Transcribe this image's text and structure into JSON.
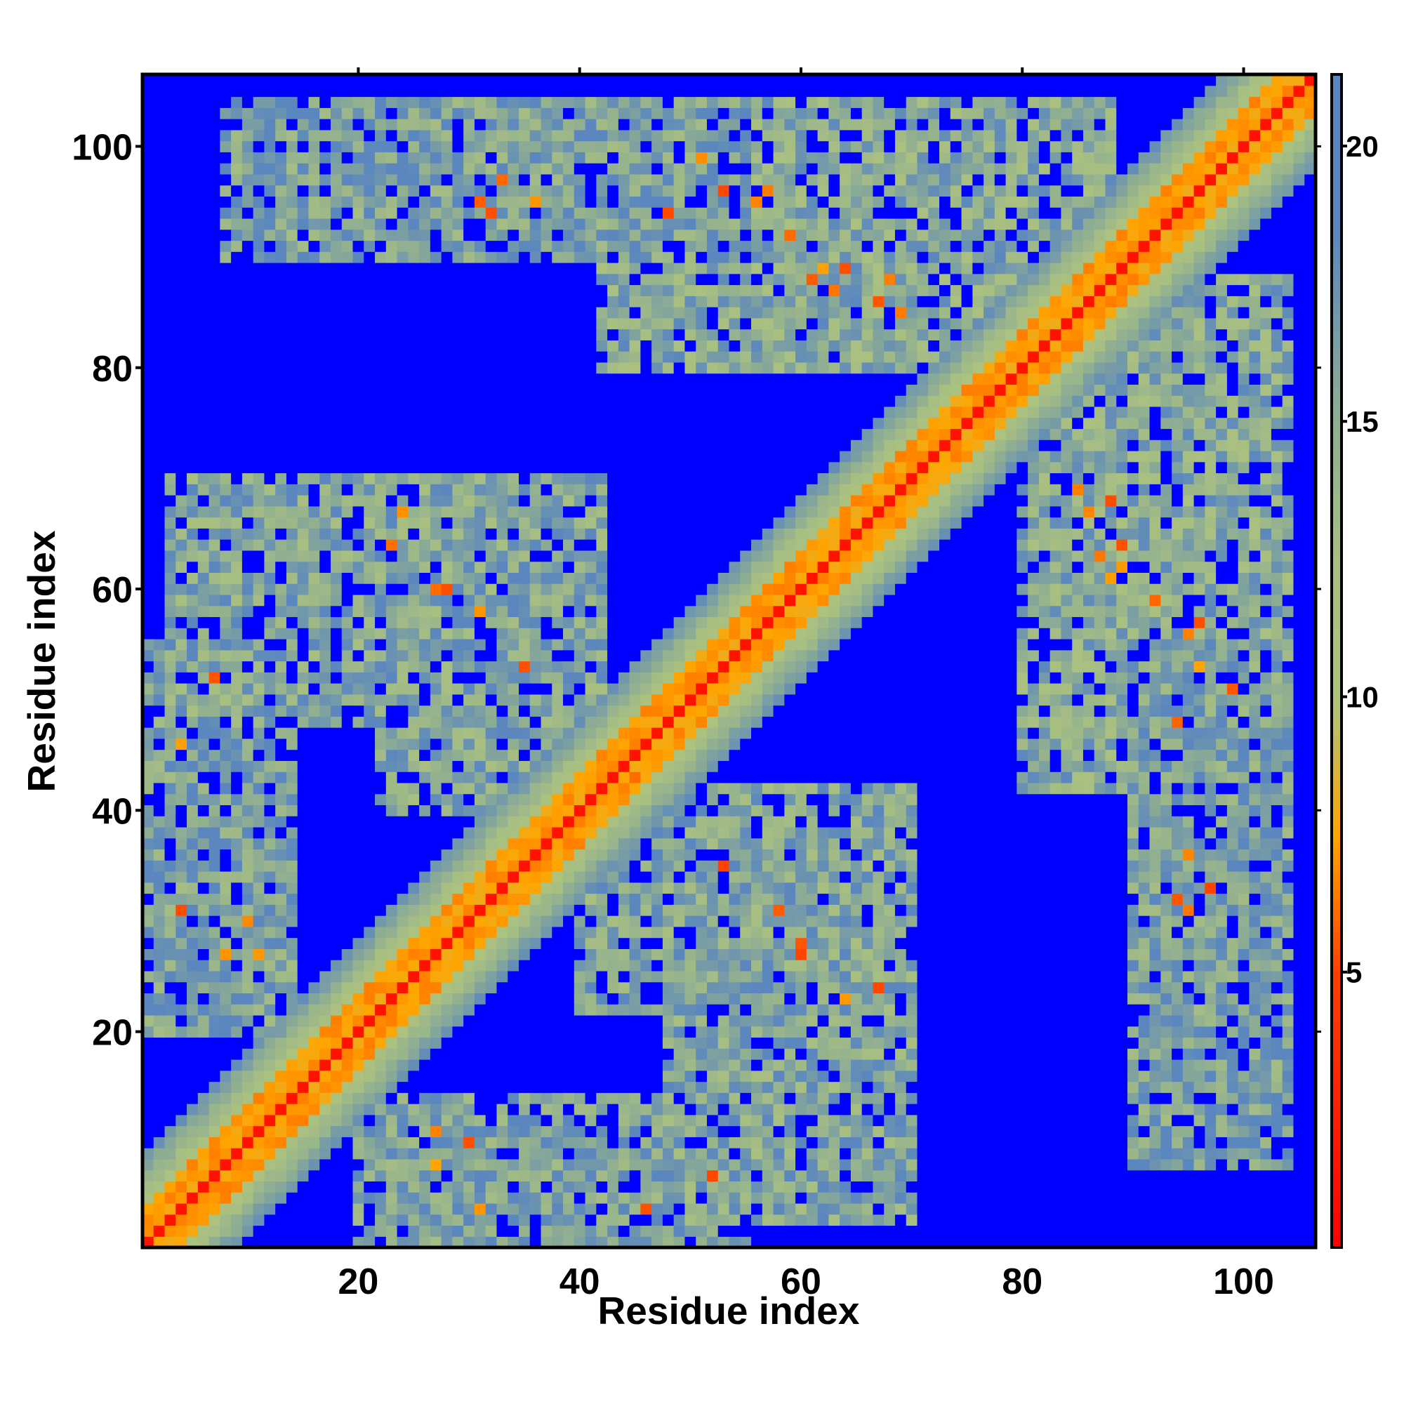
{
  "chart_data": {
    "type": "heatmap",
    "title": "",
    "xlabel": "Residue index",
    "ylabel": "Residue index",
    "n_residues": 106,
    "x_range": [
      0.5,
      106.5
    ],
    "y_range": [
      0.5,
      106.5
    ],
    "x_ticks": [
      20,
      40,
      60,
      80,
      100
    ],
    "y_ticks": [
      20,
      40,
      60,
      80,
      100
    ],
    "colorbar": {
      "ticks": [
        5,
        10,
        15,
        20
      ],
      "range": [
        0,
        21.3
      ],
      "colors": [
        {
          "value": 0,
          "color": "#ff0000"
        },
        {
          "value": 5,
          "color": "#ff4000"
        },
        {
          "value": 7.5,
          "color": "#ffa500"
        },
        {
          "value": 9.9,
          "color": "#b0c47c"
        },
        {
          "value": 12.5,
          "color": "#a8bf82"
        },
        {
          "value": 15,
          "color": "#8fae92"
        },
        {
          "value": 18.5,
          "color": "#5b87be"
        },
        {
          "value": 21.3,
          "color": "#5a86c0"
        }
      ],
      "cutoff_color": "#0000ff"
    },
    "values_description_note_removed": true,
    "diagonal_band": {
      "core": 0,
      "orange": 3,
      "band": 8
    },
    "contact_blocks": [
      {
        "x": [
          8,
          55
        ],
        "y": [
          90,
          104
        ],
        "mean": 14.5
      },
      {
        "x": [
          42,
          88
        ],
        "y": [
          80,
          104
        ],
        "mean": 13.5
      },
      {
        "x": [
          3,
          32
        ],
        "y": [
          48,
          70
        ],
        "mean": 14
      },
      {
        "x": [
          22,
          42
        ],
        "y": [
          40,
          70
        ],
        "mean": 14
      },
      {
        "x": [
          1,
          14
        ],
        "y": [
          20,
          55
        ],
        "mean": 14.5
      },
      {
        "x": [
          18,
          52
        ],
        "y": [
          4,
          20
        ],
        "mean": 14
      },
      {
        "x": [
          44,
          76
        ],
        "y": [
          6,
          38
        ],
        "mean": 14.5
      },
      {
        "x": [
          80,
          106
        ],
        "y": [
          38,
          72
        ],
        "mean": 13.5
      },
      {
        "x": [
          86,
          106
        ],
        "y": [
          58,
          72
        ],
        "mean": 12.5
      },
      {
        "x": [
          88,
          104
        ],
        "y": [
          6,
          38
        ],
        "mean": 14.5
      },
      {
        "x": [
          76,
          100
        ],
        "y": [
          24,
          38
        ],
        "mean": 15
      }
    ],
    "hotspots": [
      {
        "x": 61,
        "y": 88
      },
      {
        "x": 63,
        "y": 87
      },
      {
        "x": 67,
        "y": 86
      },
      {
        "x": 69,
        "y": 85
      },
      {
        "x": 88,
        "y": 68
      },
      {
        "x": 89,
        "y": 64
      },
      {
        "x": 89,
        "y": 62
      },
      {
        "x": 92,
        "y": 59
      },
      {
        "x": 95,
        "y": 56
      },
      {
        "x": 31,
        "y": 95
      },
      {
        "x": 48,
        "y": 94
      },
      {
        "x": 57,
        "y": 96
      },
      {
        "x": 28,
        "y": 60
      },
      {
        "x": 31,
        "y": 58
      },
      {
        "x": 43,
        "y": 45
      },
      {
        "x": 39,
        "y": 37
      },
      {
        "x": 60,
        "y": 27
      },
      {
        "x": 64,
        "y": 23
      },
      {
        "x": 67,
        "y": 24
      },
      {
        "x": 97,
        "y": 33
      },
      {
        "x": 95,
        "y": 36
      },
      {
        "x": 11,
        "y": 27
      },
      {
        "x": 10,
        "y": 30
      },
      {
        "x": 27,
        "y": 8
      },
      {
        "x": 31,
        "y": 4
      },
      {
        "x": 4,
        "y": 46
      },
      {
        "x": 7,
        "y": 52
      },
      {
        "x": 35,
        "y": 53
      },
      {
        "x": 94,
        "y": 32
      },
      {
        "x": 99,
        "y": 51
      },
      {
        "x": 92,
        "y": 94
      },
      {
        "x": 53,
        "y": 96
      }
    ]
  }
}
